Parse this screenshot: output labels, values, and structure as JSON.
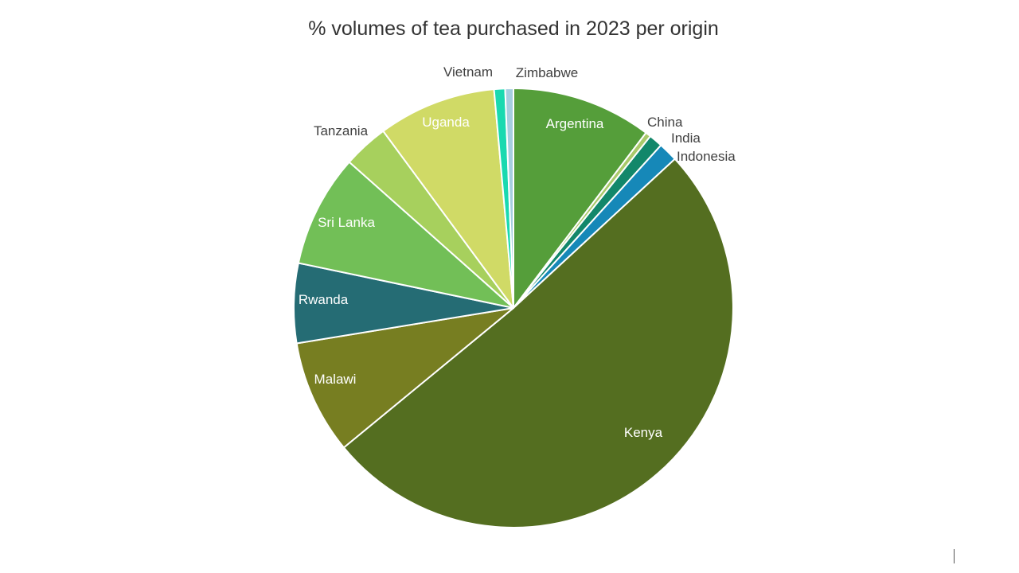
{
  "chart_data": {
    "type": "pie",
    "title": "% volumes of tea purchased in 2023 per origin",
    "slices": [
      {
        "label": "Argentina",
        "value": 10.2,
        "color": "#559E3A",
        "label_color": "#ffffff"
      },
      {
        "label": "China",
        "value": 0.4,
        "color": "#A9C96A",
        "label_color": "#404040"
      },
      {
        "label": "India",
        "value": 1.0,
        "color": "#12876A",
        "label_color": "#404040"
      },
      {
        "label": "Indonesia",
        "value": 1.4,
        "color": "#1688B8",
        "label_color": "#404040"
      },
      {
        "label": "Kenya",
        "value": 50.4,
        "color": "#546E20",
        "label_color": "#ffffff"
      },
      {
        "label": "Malawi",
        "value": 8.3,
        "color": "#777E21",
        "label_color": "#ffffff"
      },
      {
        "label": "Rwanda",
        "value": 5.8,
        "color": "#256C74",
        "label_color": "#ffffff"
      },
      {
        "label": "Sri Lanka",
        "value": 8.2,
        "color": "#72BF57",
        "label_color": "#ffffff"
      },
      {
        "label": "Tanzania",
        "value": 3.3,
        "color": "#A7D05D",
        "label_color": "#404040"
      },
      {
        "label": "Uganda",
        "value": 8.6,
        "color": "#D0DA66",
        "label_color": "#ffffff"
      },
      {
        "label": "Vietnam",
        "value": 0.8,
        "color": "#1AD9B0",
        "label_color": "#404040"
      },
      {
        "label": "Zimbabwe",
        "value": 0.6,
        "color": "#A6CEE0",
        "label_color": "#404040"
      }
    ]
  }
}
